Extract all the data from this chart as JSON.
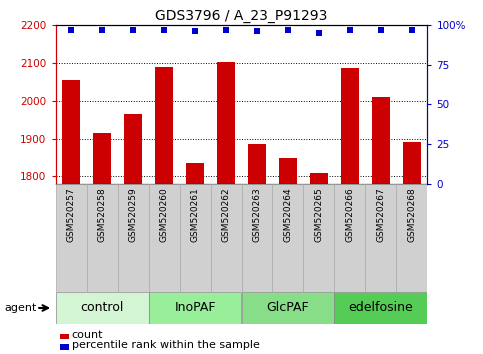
{
  "title": "GDS3796 / A_23_P91293",
  "samples": [
    "GSM520257",
    "GSM520258",
    "GSM520259",
    "GSM520260",
    "GSM520261",
    "GSM520262",
    "GSM520263",
    "GSM520264",
    "GSM520265",
    "GSM520266",
    "GSM520267",
    "GSM520268"
  ],
  "bar_values": [
    2055,
    1915,
    1965,
    2090,
    1835,
    2103,
    1885,
    1850,
    1810,
    2085,
    2010,
    1890
  ],
  "percentile_values": [
    97,
    97,
    97,
    97,
    96,
    97,
    96,
    97,
    95,
    97,
    97,
    97
  ],
  "bar_color": "#cc0000",
  "dot_color": "#0000cc",
  "ylim_left": [
    1780,
    2200
  ],
  "ylim_right": [
    0,
    100
  ],
  "yticks_left": [
    1800,
    1900,
    2000,
    2100,
    2200
  ],
  "yticks_right": [
    0,
    25,
    50,
    75,
    100
  ],
  "groups": [
    {
      "label": "control",
      "start": 0,
      "end": 3,
      "color": "#d4f5d4"
    },
    {
      "label": "InoPAF",
      "start": 3,
      "end": 6,
      "color": "#99ee99"
    },
    {
      "label": "GlcPAF",
      "start": 6,
      "end": 9,
      "color": "#88dd88"
    },
    {
      "label": "edelfosine",
      "start": 9,
      "end": 12,
      "color": "#55cc55"
    }
  ],
  "agent_label": "agent",
  "legend_count": "count",
  "legend_pct": "percentile rank within the sample",
  "title_fontsize": 10,
  "tick_fontsize": 7.5,
  "sample_fontsize": 6.5,
  "group_fontsize": 9,
  "legend_fontsize": 8
}
